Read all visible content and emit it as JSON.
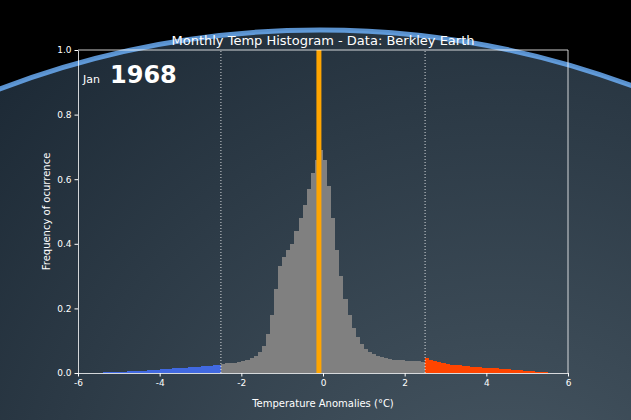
{
  "chart_data": {
    "type": "histogram",
    "title": "Monthly Temp Histogram - Data: Berkley Earth",
    "month": "Jan",
    "year": 1968,
    "x_label": "Temperature Anomalies (°C)",
    "y_label": "Frequency of ocurrence",
    "xlim": [
      -6,
      6
    ],
    "ylim": [
      0,
      1
    ],
    "xticks": [
      -6,
      -4,
      -2,
      0,
      2,
      4,
      6
    ],
    "yticks": [
      {
        "value": 0,
        "label": "0.0"
      },
      0.2,
      0.4,
      0.6,
      0.8,
      {
        "value": 1,
        "label": "1.0"
      }
    ],
    "grid": false,
    "thresholds": [
      -2.5,
      2.5
    ],
    "mean": -0.1,
    "bins": [
      -6,
      -5.9,
      -5.8,
      -5.7,
      -5.6,
      -5.5,
      -5.4,
      -5.3,
      -5.2,
      -5.1,
      -5,
      -4.9,
      -4.8,
      -4.7,
      -4.6,
      -4.5,
      -4.4,
      -4.3,
      -4.2,
      -4.1,
      -4,
      -3.9,
      -3.8,
      -3.7,
      -3.6,
      -3.5,
      -3.4,
      -3.3,
      -3.2,
      -3.1,
      -3,
      -2.9,
      -2.8,
      -2.7,
      -2.6,
      -2.5,
      -2.4,
      -2.3,
      -2.2,
      -2.1,
      -2,
      -1.9,
      -1.8,
      -1.7,
      -1.6,
      -1.5,
      -1.4,
      -1.3,
      -1.2,
      -1.1,
      -1,
      -0.9,
      -0.8,
      -0.7,
      -0.6,
      -0.5,
      -0.4,
      -0.3,
      -0.2,
      -0.1,
      0,
      0.1,
      0.2,
      0.3,
      0.4,
      0.5,
      0.6,
      0.7,
      0.8,
      0.9,
      1,
      1.1,
      1.2,
      1.3,
      1.4,
      1.5,
      1.6,
      1.7,
      1.8,
      1.9,
      2,
      2.1,
      2.2,
      2.3,
      2.4,
      2.5,
      2.6,
      2.7,
      2.8,
      2.9,
      3,
      3.1,
      3.2,
      3.3,
      3.4,
      3.5,
      3.6,
      3.7,
      3.8,
      3.9,
      4,
      4.1,
      4.2,
      4.3,
      4.4,
      4.5,
      4.6,
      4.7,
      4.8,
      4.9,
      5,
      5.1,
      5.2,
      5.3,
      5.4,
      5.5,
      5.6,
      5.7,
      5.8,
      5.9,
      6
    ],
    "values": [
      0,
      0,
      0,
      0,
      0,
      0,
      0.002,
      0.002,
      0.003,
      0.003,
      0.004,
      0.004,
      0.005,
      0.005,
      0.006,
      0.006,
      0.007,
      0.008,
      0.009,
      0.01,
      0.011,
      0.012,
      0.013,
      0.014,
      0.015,
      0.016,
      0.017,
      0.018,
      0.019,
      0.02,
      0.021,
      0.022,
      0.023,
      0.024,
      0.026,
      0.028,
      0.03,
      0.031,
      0.032,
      0.034,
      0.036,
      0.04,
      0.045,
      0.052,
      0.065,
      0.085,
      0.12,
      0.18,
      0.26,
      0.33,
      0.36,
      0.38,
      0.4,
      0.44,
      0.48,
      0.52,
      0.57,
      0.62,
      0.66,
      0.69,
      0.66,
      0.58,
      0.48,
      0.38,
      0.3,
      0.23,
      0.18,
      0.14,
      0.11,
      0.09,
      0.075,
      0.065,
      0.058,
      0.052,
      0.048,
      0.045,
      0.043,
      0.041,
      0.04,
      0.039,
      0.038,
      0.037,
      0.036,
      0.036,
      0.035,
      0.045,
      0.04,
      0.036,
      0.033,
      0.03,
      0.028,
      0.026,
      0.025,
      0.024,
      0.022,
      0.021,
      0.02,
      0.019,
      0.018,
      0.017,
      0.016,
      0.015,
      0.014,
      0.013,
      0.012,
      0.011,
      0.01,
      0.009,
      0.008,
      0.007,
      0.006,
      0.005,
      0.004,
      0.003,
      0.002,
      0,
      0,
      0,
      0,
      0
    ],
    "colors": [
      "#4169e1",
      "#4169e1",
      "#4169e1",
      "#4169e1",
      "#4169e1",
      "#4169e1",
      "#4169e1",
      "#4169e1",
      "#4169e1",
      "#4169e1",
      "#4169e1",
      "#4169e1",
      "#4169e1",
      "#4169e1",
      "#4169e1",
      "#4169e1",
      "#4169e1",
      "#4169e1",
      "#4169e1",
      "#4169e1",
      "#4169e1",
      "#4169e1",
      "#4169e1",
      "#4169e1",
      "#4169e1",
      "#4169e1",
      "#4169e1",
      "#4169e1",
      "#4169e1",
      "#4169e1",
      "#4169e1",
      "#4169e1",
      "#4169e1",
      "#4169e1",
      "#4169e1",
      "#808080",
      "#808080",
      "#808080",
      "#808080",
      "#808080",
      "#808080",
      "#808080",
      "#808080",
      "#808080",
      "#808080",
      "#808080",
      "#808080",
      "#808080",
      "#808080",
      "#808080",
      "#808080",
      "#808080",
      "#808080",
      "#808080",
      "#808080",
      "#808080",
      "#808080",
      "#808080",
      "#808080",
      "#808080",
      "#808080",
      "#808080",
      "#808080",
      "#808080",
      "#808080",
      "#808080",
      "#808080",
      "#808080",
      "#808080",
      "#808080",
      "#808080",
      "#808080",
      "#808080",
      "#808080",
      "#808080",
      "#808080",
      "#808080",
      "#808080",
      "#808080",
      "#808080",
      "#808080",
      "#808080",
      "#808080",
      "#808080",
      "#808080",
      "#ff4500",
      "#ff4500",
      "#ff4500",
      "#ff4500",
      "#ff4500",
      "#ff4500",
      "#ff4500",
      "#ff4500",
      "#ff4500",
      "#ff4500",
      "#ff4500",
      "#ff4500",
      "#ff4500",
      "#ff4500",
      "#ff4500",
      "#ff4500",
      "#ff4500",
      "#ff4500",
      "#ff4500",
      "#ff4500",
      "#ff4500",
      "#ff4500",
      "#ff4500",
      "#ff4500",
      "#ff4500",
      "#ff4500",
      "#ff4500",
      "#ff4500",
      "#ff4500",
      "#ff4500",
      "#ff4500",
      "#ff4500",
      "#ff4500",
      "#ff4500",
      "#ff4500"
    ]
  }
}
